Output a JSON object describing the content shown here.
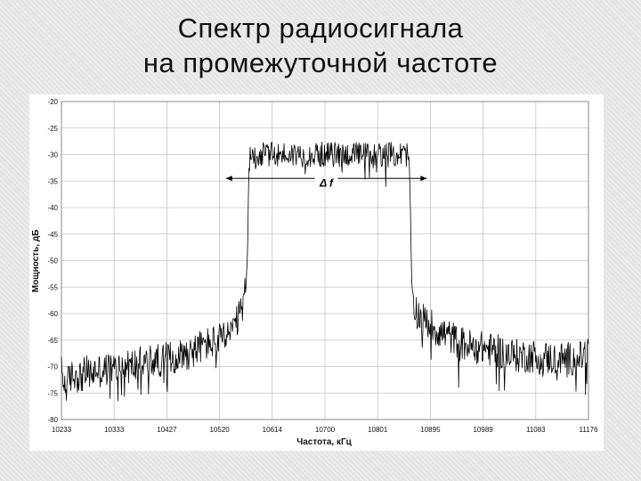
{
  "slide": {
    "title_line1": "Спектр радиосигнала",
    "title_line2": "на промежуточной частоте"
  },
  "chart_data": {
    "type": "line",
    "xlabel": "Частота, кГц",
    "ylabel": "Мощность, дБ",
    "xlim": [
      10233,
      11176
    ],
    "ylim": [
      -80,
      -20
    ],
    "x_ticks": [
      10233,
      10333,
      10427,
      10520,
      10614,
      10700,
      10801,
      10895,
      10989,
      11083,
      11176
    ],
    "y_ticks": [
      -20,
      -25,
      -30,
      -35,
      -40,
      -45,
      -50,
      -55,
      -60,
      -65,
      -70,
      -75,
      -80
    ],
    "grid": true,
    "annotation": {
      "label": "Δ f",
      "y": -34.5,
      "x_start": 10560,
      "x_end": 10860
    },
    "series": [
      {
        "color": "#000000",
        "points": [
          [
            10233,
            -71
          ],
          [
            10240,
            -74
          ],
          [
            10250,
            -72
          ],
          [
            10260,
            -71.5
          ],
          [
            10270,
            -72
          ],
          [
            10280,
            -71
          ],
          [
            10290,
            -71.5
          ],
          [
            10300,
            -70.5
          ],
          [
            10310,
            -71
          ],
          [
            10320,
            -70.5
          ],
          [
            10333,
            -70.5
          ],
          [
            10345,
            -70
          ],
          [
            10360,
            -70
          ],
          [
            10375,
            -69.5
          ],
          [
            10390,
            -69
          ],
          [
            10405,
            -69
          ],
          [
            10427,
            -68.5
          ],
          [
            10445,
            -68
          ],
          [
            10460,
            -67.5
          ],
          [
            10475,
            -67
          ],
          [
            10490,
            -66
          ],
          [
            10505,
            -65.5
          ],
          [
            10520,
            -65
          ],
          [
            10530,
            -64.5
          ],
          [
            10540,
            -63.5
          ],
          [
            10550,
            -62
          ],
          [
            10556,
            -60.5
          ],
          [
            10562,
            -58
          ],
          [
            10567,
            -55
          ],
          [
            10570,
            -49
          ],
          [
            10572,
            -33
          ],
          [
            10575,
            -30.5
          ],
          [
            10600,
            -30
          ],
          [
            10614,
            -30
          ],
          [
            10650,
            -30
          ],
          [
            10700,
            -30
          ],
          [
            10750,
            -30
          ],
          [
            10801,
            -30
          ],
          [
            10830,
            -30
          ],
          [
            10855,
            -30
          ],
          [
            10858,
            -33
          ],
          [
            10862,
            -55
          ],
          [
            10866,
            -58
          ],
          [
            10872,
            -60
          ],
          [
            10880,
            -61
          ],
          [
            10895,
            -62
          ],
          [
            10910,
            -63.5
          ],
          [
            10925,
            -64
          ],
          [
            10940,
            -65
          ],
          [
            10960,
            -66
          ],
          [
            10989,
            -66.5
          ],
          [
            11010,
            -67
          ],
          [
            11030,
            -67.5
          ],
          [
            11050,
            -68
          ],
          [
            11083,
            -68
          ],
          [
            11110,
            -68.5
          ],
          [
            11140,
            -68.5
          ],
          [
            11160,
            -68.5
          ],
          [
            11176,
            -67
          ]
        ]
      }
    ]
  },
  "colors": {
    "grid": "#c4c4c4",
    "trace": "#000000",
    "plot_bg": "#ffffff",
    "page_bg": "#e4e4e4"
  }
}
